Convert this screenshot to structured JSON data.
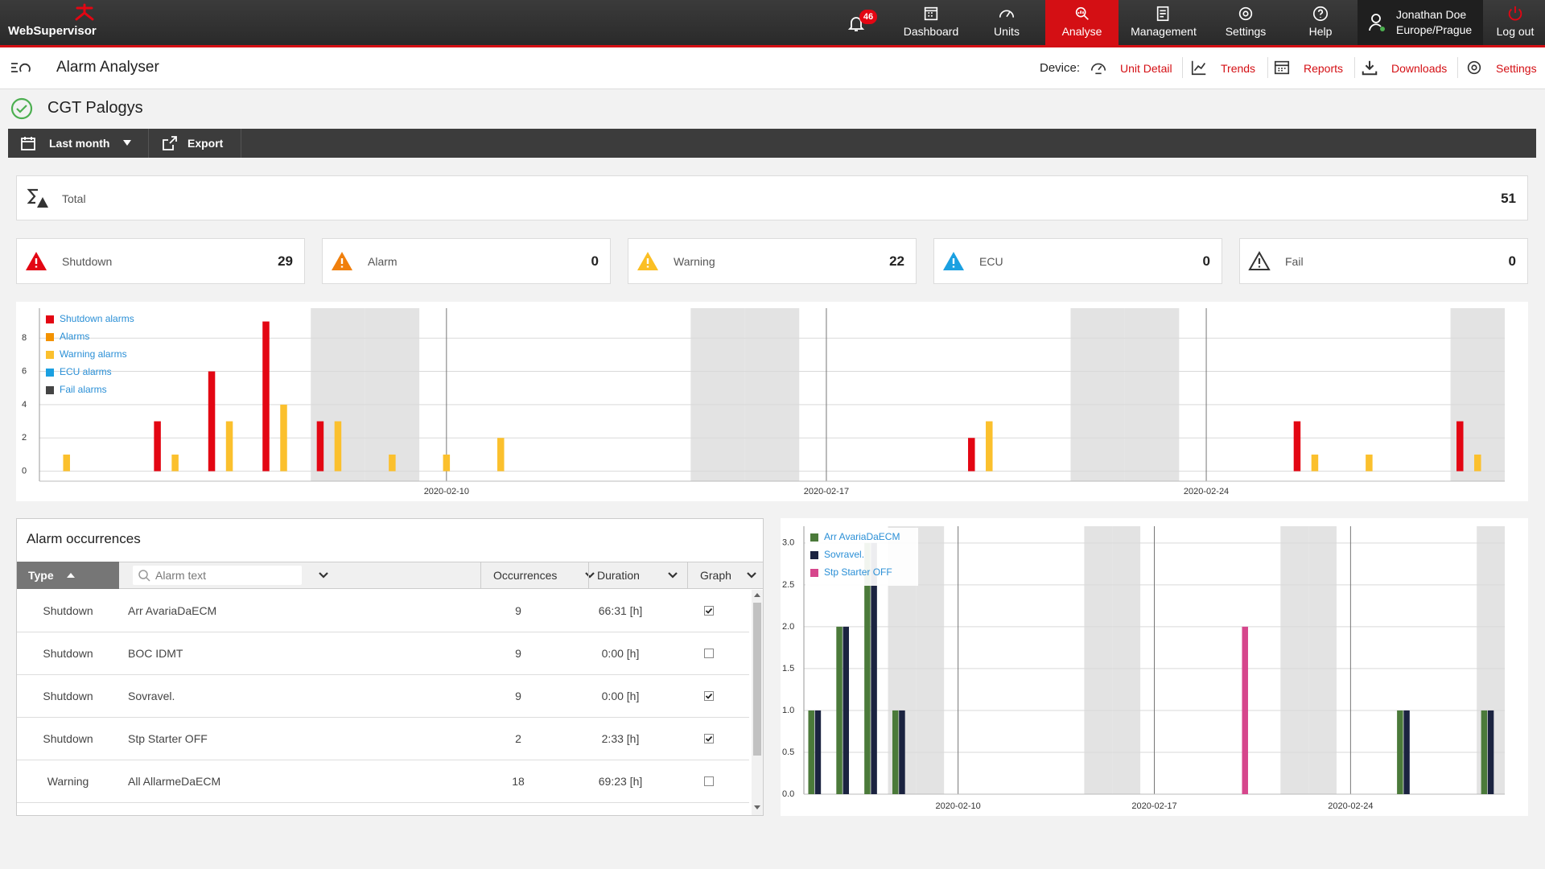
{
  "header": {
    "logo": "WebSupervisor",
    "notifications": 46,
    "nav": [
      "Dashboard",
      "Units",
      "Analyse",
      "Management",
      "Settings",
      "Help"
    ],
    "active_nav": 2,
    "user_name": "Jonathan Doe",
    "user_timezone": "Europe/Prague",
    "logout": "Log out"
  },
  "page": {
    "title": "Alarm Analyser",
    "device_label": "Device:",
    "device_links": [
      "Unit Detail",
      "Trends",
      "Reports",
      "Downloads",
      "Settings"
    ],
    "unit_name": "CGT Palogys"
  },
  "toolbar": {
    "period": "Last month",
    "export": "Export"
  },
  "summary": {
    "total_label": "Total",
    "total": 51,
    "items": [
      {
        "label": "Shutdown",
        "value": 29,
        "color": "#e30613",
        "outlined": false
      },
      {
        "label": "Alarm",
        "value": 0,
        "color": "#f07f0c",
        "outlined": false
      },
      {
        "label": "Warning",
        "value": 22,
        "color": "#fbbf24",
        "outlined": false
      },
      {
        "label": "ECU",
        "value": 0,
        "color": "#1ba0e1",
        "outlined": false
      },
      {
        "label": "Fail",
        "value": 0,
        "color": "#333333",
        "outlined": true
      }
    ]
  },
  "chart_data": [
    {
      "type": "bar",
      "legend": "top-left",
      "grid": true,
      "categories": [
        null,
        null,
        null,
        null,
        null,
        null,
        null,
        "2020-02-10",
        null,
        null,
        null,
        null,
        null,
        null,
        "2020-02-17",
        null,
        null,
        null,
        null,
        null,
        null,
        "2020-02-24",
        null,
        null,
        null,
        null,
        null
      ],
      "shaded": [
        5,
        6,
        12,
        13,
        19,
        20,
        26
      ],
      "ylim": [
        -0.6,
        9.8
      ],
      "yticks": [
        0,
        2,
        4,
        6,
        8
      ],
      "series": [
        {
          "name": "Shutdown alarms",
          "color": "#e30613",
          "values": [
            0,
            0,
            3,
            6,
            9,
            3,
            0,
            0,
            0,
            0,
            0,
            0,
            0,
            0,
            0,
            0,
            0,
            2,
            0,
            0,
            0,
            0,
            0,
            3,
            0,
            0,
            3
          ]
        },
        {
          "name": "Alarms",
          "color": "#f39200",
          "values": [
            0,
            0,
            0,
            0,
            0,
            0,
            0,
            0,
            0,
            0,
            0,
            0,
            0,
            0,
            0,
            0,
            0,
            0,
            0,
            0,
            0,
            0,
            0,
            0,
            0,
            0,
            0
          ]
        },
        {
          "name": "Warning alarms",
          "color": "#fbc02d",
          "values": [
            1,
            0,
            1,
            3,
            4,
            3,
            1,
            1,
            2,
            0,
            0,
            0,
            0,
            0,
            0,
            0,
            0,
            3,
            0,
            0,
            0,
            0,
            0,
            1,
            1,
            0,
            1
          ]
        },
        {
          "name": "ECU alarms",
          "color": "#1ba0e1",
          "values": [
            0,
            0,
            0,
            0,
            0,
            0,
            0,
            0,
            0,
            0,
            0,
            0,
            0,
            0,
            0,
            0,
            0,
            0,
            0,
            0,
            0,
            0,
            0,
            0,
            0,
            0,
            0
          ]
        },
        {
          "name": "Fail alarms",
          "color": "#444444",
          "values": [
            0,
            0,
            0,
            0,
            0,
            0,
            0,
            0,
            0,
            0,
            0,
            0,
            0,
            0,
            0,
            0,
            0,
            0,
            0,
            0,
            0,
            0,
            0,
            0,
            0,
            0,
            0
          ]
        }
      ]
    },
    {
      "type": "bar",
      "legend": "top-left",
      "grid": true,
      "categories": [
        null,
        null,
        null,
        null,
        null,
        "2020-02-10",
        null,
        null,
        null,
        null,
        null,
        null,
        "2020-02-17",
        null,
        null,
        null,
        null,
        null,
        null,
        "2020-02-24",
        null,
        null,
        null,
        null,
        null
      ],
      "shaded": [
        3,
        4,
        10,
        11,
        17,
        18,
        24
      ],
      "ylim": [
        0,
        3.2
      ],
      "yticks": [
        {
          "value": 0,
          "label": "0.0"
        },
        0.5,
        {
          "value": 1,
          "label": "1.0"
        },
        1.5,
        {
          "value": 2,
          "label": "2.0"
        },
        2.5,
        {
          "value": 3,
          "label": "3.0"
        }
      ],
      "series": [
        {
          "name": "Arr AvariaDaECM",
          "color": "#4b7a3a",
          "values": [
            1,
            2,
            3,
            1,
            0,
            0,
            0,
            0,
            0,
            0,
            0,
            0,
            0,
            0,
            0,
            0,
            0,
            0,
            0,
            0,
            0,
            1,
            0,
            0,
            1
          ]
        },
        {
          "name": "Sovravel.",
          "color": "#1b2340",
          "values": [
            1,
            2,
            3,
            1,
            0,
            0,
            0,
            0,
            0,
            0,
            0,
            0,
            0,
            0,
            0,
            0,
            0,
            0,
            0,
            0,
            0,
            1,
            0,
            0,
            1
          ]
        },
        {
          "name": "Stp Starter OFF",
          "color": "#d6468c",
          "values": [
            0,
            0,
            0,
            0,
            0,
            0,
            0,
            0,
            0,
            0,
            0,
            0,
            0,
            0,
            0,
            2,
            0,
            0,
            0,
            0,
            0,
            0,
            0,
            0,
            0
          ]
        }
      ]
    }
  ],
  "table": {
    "title": "Alarm occurrences",
    "columns": [
      "Type",
      "Alarm text",
      "Occurrences",
      "Duration",
      "Graph"
    ],
    "rows": [
      {
        "type": "Shutdown",
        "text": "Arr AvariaDaECM",
        "occurrences": 9,
        "duration": "66:31 [h]",
        "graph": true
      },
      {
        "type": "Shutdown",
        "text": "BOC IDMT",
        "occurrences": 9,
        "duration": "0:00 [h]",
        "graph": false
      },
      {
        "type": "Shutdown",
        "text": "Sovravel.",
        "occurrences": 9,
        "duration": "0:00 [h]",
        "graph": true
      },
      {
        "type": "Shutdown",
        "text": "Stp Starter OFF",
        "occurrences": 2,
        "duration": "2:33 [h]",
        "graph": true
      },
      {
        "type": "Warning",
        "text": "All AllarmeDaECM",
        "occurrences": 18,
        "duration": "69:23 [h]",
        "graph": false
      }
    ]
  }
}
